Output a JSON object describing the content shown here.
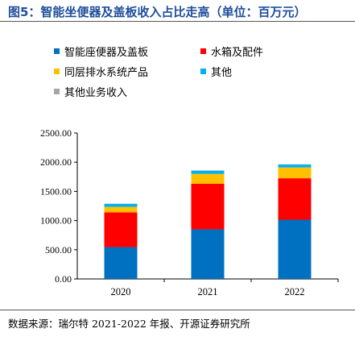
{
  "header": {
    "title": "图5：智能坐便器及盖板收入占比走高（单位：百万元）"
  },
  "footer": {
    "source": "数据来源：瑞尔特 2021-2022 年报、开源证券研究所"
  },
  "colors": {
    "title": "#1f4e9c",
    "series": [
      "#0070c0",
      "#ff0000",
      "#ffc000",
      "#00b0f0",
      "#a6a6a6"
    ]
  },
  "chart_data": {
    "type": "bar",
    "stacked": true,
    "categories": [
      "2020",
      "2021",
      "2022"
    ],
    "series": [
      {
        "name": "智能座便器及盖板",
        "values": [
          545,
          850,
          1015
        ]
      },
      {
        "name": "水箱及配件",
        "values": [
          595,
          780,
          710
        ]
      },
      {
        "name": "同层排水系统产品",
        "values": [
          95,
          170,
          185
        ]
      },
      {
        "name": "其他",
        "values": [
          50,
          55,
          50
        ]
      },
      {
        "name": "其他业务收入",
        "values": [
          5,
          5,
          5
        ]
      }
    ],
    "yticks": [
      "0.00",
      "500.00",
      "1000.00",
      "1500.00",
      "2000.00",
      "2500.00"
    ],
    "ylim": [
      0,
      2500
    ],
    "legend": "top"
  }
}
